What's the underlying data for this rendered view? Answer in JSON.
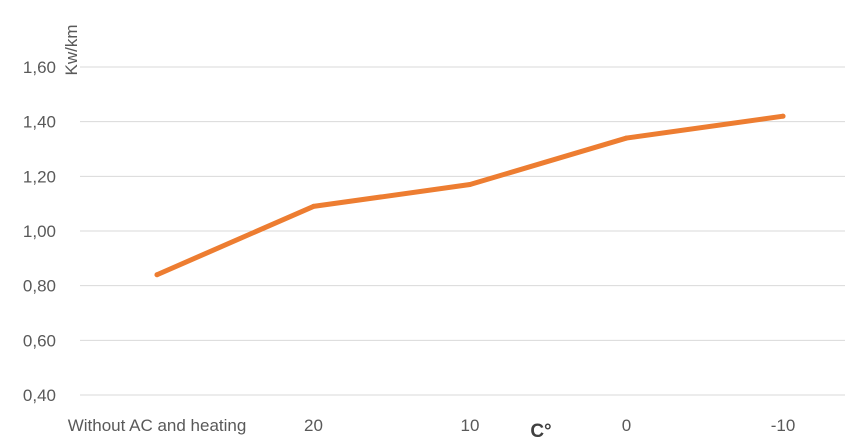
{
  "chart_data": {
    "type": "line",
    "title": "",
    "categories": [
      "Without AC and heating",
      "20",
      "10",
      "0",
      "-10"
    ],
    "series": [
      {
        "values": [
          0.84,
          1.09,
          1.17,
          1.34,
          1.42
        ],
        "color": "#ED7D31"
      }
    ],
    "xlabel": "C°",
    "ylabel": "Kw/km",
    "ylim": [
      0.4,
      1.6
    ],
    "yticks": [
      0.4,
      0.6,
      0.8,
      1.0,
      1.2,
      1.4,
      1.6
    ],
    "ytick_labels": [
      "0,40",
      "0,60",
      "0,80",
      "1,00",
      "1,20",
      "1,40",
      "1,60"
    ],
    "grid": true,
    "legend": "none",
    "gridline_color": "#D9D9D9",
    "text_color": "#595959"
  }
}
